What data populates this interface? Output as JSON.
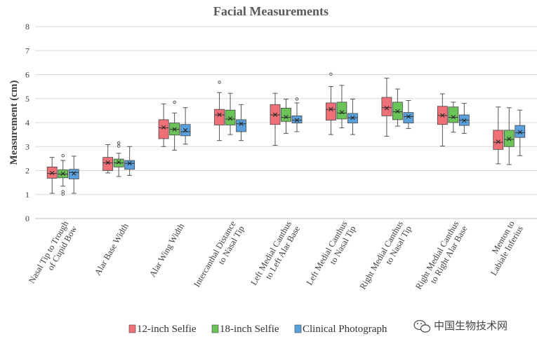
{
  "chart_data": {
    "type": "box",
    "title": "Facial Measurements",
    "xlabel": "",
    "ylabel": "Measurement (cm)",
    "ylim": [
      0,
      8
    ],
    "yticks": [
      "0",
      "1",
      "2",
      "3",
      "4",
      "5",
      "6",
      "7",
      "8"
    ],
    "grid": true,
    "legend_position": "bottom",
    "categories": [
      [
        "Nasal Tip to Trough",
        "of Cupid Bow"
      ],
      [
        "Alar Base Width"
      ],
      [
        "Alar Wing Width"
      ],
      [
        "Intercanthal Distance",
        "to Nasal Tip"
      ],
      [
        "Left Medial Canthus",
        "to Left Alar Base"
      ],
      [
        "Left Medial Canthus",
        "to Nasal Tip"
      ],
      [
        "Right Medial Canthus",
        "to Nasal Tip"
      ],
      [
        "Right Medial Canthus",
        "to Right Alar Base"
      ],
      [
        "Menton to",
        "Labiale Inferius"
      ]
    ],
    "series": [
      {
        "name": "12-inch Selfie",
        "color": "#f07078",
        "boxes": [
          {
            "min": 1.05,
            "q1": 1.68,
            "median": 1.88,
            "mean": 1.9,
            "q3": 2.15,
            "max": 2.55,
            "outliers": []
          },
          {
            "min": 1.9,
            "q1": 2.0,
            "median": 2.32,
            "mean": 2.33,
            "q3": 2.55,
            "max": 3.08,
            "outliers": []
          },
          {
            "min": 3.0,
            "q1": 3.33,
            "median": 3.78,
            "mean": 3.8,
            "q3": 4.12,
            "max": 4.78,
            "outliers": []
          },
          {
            "min": 3.25,
            "q1": 3.9,
            "median": 4.32,
            "mean": 4.33,
            "q3": 4.55,
            "max": 5.25,
            "outliers": [
              5.68
            ]
          },
          {
            "min": 3.05,
            "q1": 3.92,
            "median": 4.32,
            "mean": 4.33,
            "q3": 4.75,
            "max": 5.22,
            "outliers": []
          },
          {
            "min": 3.5,
            "q1": 4.1,
            "median": 4.55,
            "mean": 4.56,
            "q3": 4.82,
            "max": 5.5,
            "outliers": [
              6.02
            ]
          },
          {
            "min": 3.43,
            "q1": 4.28,
            "median": 4.62,
            "mean": 4.6,
            "q3": 5.05,
            "max": 5.85,
            "outliers": []
          },
          {
            "min": 3.02,
            "q1": 3.92,
            "median": 4.3,
            "mean": 4.3,
            "q3": 4.68,
            "max": 5.2,
            "outliers": []
          },
          {
            "min": 2.28,
            "q1": 2.88,
            "median": 3.18,
            "mean": 3.2,
            "q3": 3.68,
            "max": 4.65,
            "outliers": []
          }
        ]
      },
      {
        "name": "18-inch Selfie",
        "color": "#6cc35a",
        "boxes": [
          {
            "min": 1.35,
            "q1": 1.7,
            "median": 1.85,
            "mean": 1.87,
            "q3": 2.03,
            "max": 2.42,
            "outliers": [
              2.62,
              1.12,
              1.02
            ]
          },
          {
            "min": 1.75,
            "q1": 2.15,
            "median": 2.32,
            "mean": 2.35,
            "q3": 2.48,
            "max": 2.72,
            "outliers": [
              3.02,
              3.15
            ]
          },
          {
            "min": 2.85,
            "q1": 3.48,
            "median": 3.72,
            "mean": 3.72,
            "q3": 3.98,
            "max": 4.4,
            "outliers": [
              4.85
            ]
          },
          {
            "min": 3.5,
            "q1": 3.9,
            "median": 4.15,
            "mean": 4.17,
            "q3": 4.52,
            "max": 5.22,
            "outliers": []
          },
          {
            "min": 3.55,
            "q1": 4.05,
            "median": 4.22,
            "mean": 4.23,
            "q3": 4.6,
            "max": 4.98,
            "outliers": []
          },
          {
            "min": 3.78,
            "q1": 4.15,
            "median": 4.4,
            "mean": 4.43,
            "q3": 4.85,
            "max": 5.55,
            "outliers": []
          },
          {
            "min": 3.85,
            "q1": 4.12,
            "median": 4.45,
            "mean": 4.47,
            "q3": 4.85,
            "max": 5.4,
            "outliers": []
          },
          {
            "min": 3.6,
            "q1": 4.0,
            "median": 4.22,
            "mean": 4.23,
            "q3": 4.65,
            "max": 4.85,
            "outliers": []
          },
          {
            "min": 2.25,
            "q1": 3.0,
            "median": 3.3,
            "mean": 3.32,
            "q3": 3.68,
            "max": 4.62,
            "outliers": []
          }
        ]
      },
      {
        "name": "Clinical Photograph",
        "color": "#5aa0dc",
        "boxes": [
          {
            "min": 1.05,
            "q1": 1.65,
            "median": 1.92,
            "mean": 1.88,
            "q3": 2.05,
            "max": 2.6,
            "outliers": []
          },
          {
            "min": 1.8,
            "q1": 2.05,
            "median": 2.3,
            "mean": 2.3,
            "q3": 2.42,
            "max": 3.0,
            "outliers": []
          },
          {
            "min": 3.1,
            "q1": 3.45,
            "median": 3.62,
            "mean": 3.68,
            "q3": 3.92,
            "max": 4.62,
            "outliers": []
          },
          {
            "min": 3.25,
            "q1": 3.62,
            "median": 3.95,
            "mean": 3.95,
            "q3": 4.12,
            "max": 4.75,
            "outliers": []
          },
          {
            "min": 3.62,
            "q1": 3.98,
            "median": 4.1,
            "mean": 4.1,
            "q3": 4.28,
            "max": 4.82,
            "outliers": [
              4.98
            ]
          },
          {
            "min": 3.5,
            "q1": 3.98,
            "median": 4.2,
            "mean": 4.2,
            "q3": 4.38,
            "max": 4.98,
            "outliers": []
          },
          {
            "min": 3.75,
            "q1": 3.98,
            "median": 4.25,
            "mean": 4.25,
            "q3": 4.42,
            "max": 4.92,
            "outliers": []
          },
          {
            "min": 3.55,
            "q1": 3.88,
            "median": 4.1,
            "mean": 4.08,
            "q3": 4.32,
            "max": 4.8,
            "outliers": []
          },
          {
            "min": 2.62,
            "q1": 3.38,
            "median": 3.58,
            "mean": 3.6,
            "q3": 3.88,
            "max": 4.52,
            "outliers": []
          }
        ]
      }
    ]
  },
  "watermark": {
    "icon": "wechat-icon",
    "text": "中国生物技术网"
  }
}
